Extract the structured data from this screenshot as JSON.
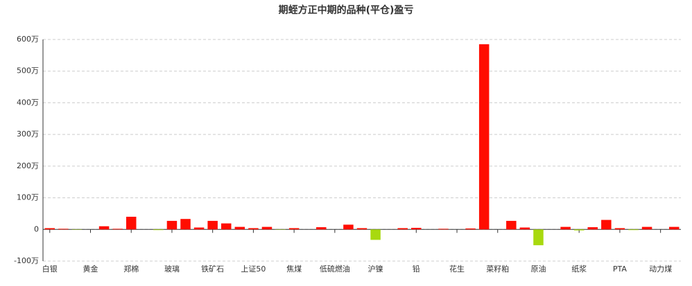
{
  "chart_data": {
    "type": "bar",
    "title": "期蛭方正中期的品种(平仓)盈亏",
    "categories": [
      "白银",
      null,
      null,
      "黄金",
      null,
      null,
      "郑棉",
      null,
      null,
      "玻璃",
      null,
      null,
      "铁矿石",
      null,
      null,
      "上证50",
      null,
      null,
      "焦煤",
      null,
      null,
      "低硫燃油",
      null,
      null,
      "沪镍",
      null,
      null,
      "铅",
      null,
      null,
      "花生",
      null,
      null,
      "菜籽粕",
      null,
      null,
      "原油",
      null,
      null,
      "纸浆",
      null,
      null,
      "PTA",
      null,
      null,
      "动力煤",
      null
    ],
    "values": [
      4,
      2,
      -1,
      0,
      10,
      2,
      40,
      0,
      -2,
      27,
      33,
      6,
      27,
      19,
      8,
      4,
      8,
      -1,
      4,
      0,
      7,
      0,
      15,
      4,
      -33,
      0,
      4,
      5,
      0,
      2,
      0,
      3,
      585,
      0,
      27,
      6,
      -50,
      0,
      8,
      -3,
      7,
      30,
      4,
      -2,
      8,
      0,
      8
    ],
    "positive_color": "#ff0d00",
    "negative_color": "#a8d90f",
    "ylim": [
      -100,
      600
    ],
    "yticks": [
      {
        "value": -100,
        "label": "-100万"
      },
      0,
      {
        "value": 100,
        "label": "100万"
      },
      {
        "value": 200,
        "label": "200万"
      },
      {
        "value": 300,
        "label": "300万"
      },
      {
        "value": 400,
        "label": "400万"
      },
      {
        "value": 500,
        "label": "500万"
      },
      {
        "value": 600,
        "label": "600万"
      }
    ],
    "grid": true
  }
}
